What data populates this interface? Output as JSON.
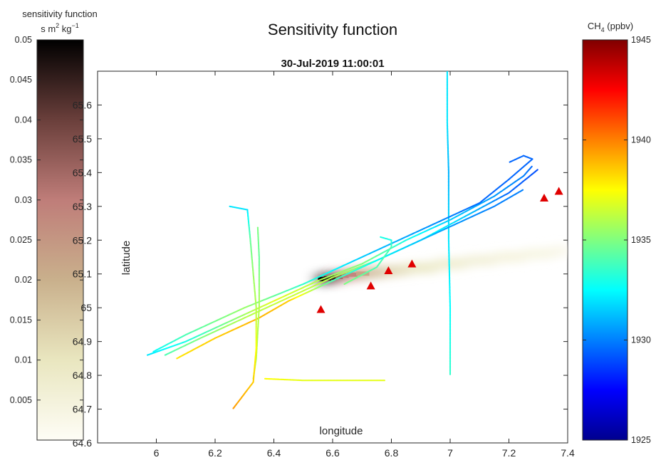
{
  "chart_data": {
    "type": "scatter",
    "title": "Sensitivity function",
    "subtitle": "30-Jul-2019 11:00:01",
    "xlabel": "longitude",
    "ylabel": "latitude",
    "xlim": [
      5.8,
      7.4
    ],
    "ylim": [
      64.6,
      65.7
    ],
    "xticks": [
      "6",
      "6.2",
      "6.4",
      "6.6",
      "6.8",
      "7",
      "7.2",
      "7.4"
    ],
    "yticks": [
      "64.6",
      "64.7",
      "64.8",
      "64.9",
      "65",
      "65.1",
      "65.2",
      "65.3",
      "65.4",
      "65.5",
      "65.6"
    ],
    "grid": false,
    "colorbar_left": {
      "title_line1": "sensitivity function",
      "title_line2_parts": [
        "s m",
        "2",
        " kg",
        "−1"
      ],
      "range": [
        0.0,
        0.05
      ],
      "ticks": [
        "0.05",
        "0.045",
        "0.04",
        "0.035",
        "0.03",
        "0.025",
        "0.02",
        "0.015",
        "0.01",
        "0.005"
      ],
      "colormap": [
        "#fefdf6",
        "#e9e6bf",
        "#c9b08c",
        "#bf7d79",
        "#6a3f3b",
        "#000000"
      ]
    },
    "colorbar_right": {
      "title_parts": [
        "CH",
        "4",
        " (ppbv)"
      ],
      "range": [
        1925,
        1945
      ],
      "ticks": [
        "1945",
        "1940",
        "1935",
        "1930",
        "1925"
      ],
      "colormap": [
        "#00008f",
        "#0000ff",
        "#0080ff",
        "#00ffff",
        "#80ff80",
        "#ffff00",
        "#ff8000",
        "#ff0000",
        "#800000"
      ]
    },
    "markers": {
      "shape": "triangle",
      "color": "#e00000",
      "points": [
        [
          6.56,
          64.995
        ],
        [
          6.73,
          65.065
        ],
        [
          6.79,
          65.11
        ],
        [
          6.87,
          65.13
        ],
        [
          7.32,
          65.325
        ],
        [
          7.37,
          65.345
        ]
      ]
    },
    "sensitivity_plume": [
      [
        6.55,
        65.085,
        0.05
      ],
      [
        6.57,
        65.087,
        0.047
      ],
      [
        6.59,
        65.089,
        0.045
      ],
      [
        6.61,
        65.092,
        0.035
      ],
      [
        6.63,
        65.095,
        0.03
      ],
      [
        6.65,
        65.098,
        0.028
      ],
      [
        6.68,
        65.101,
        0.022
      ],
      [
        6.72,
        65.105,
        0.018
      ],
      [
        6.78,
        65.11,
        0.013
      ],
      [
        6.85,
        65.118,
        0.01
      ],
      [
        6.95,
        65.13,
        0.008
      ],
      [
        7.05,
        65.14,
        0.006
      ],
      [
        7.15,
        65.15,
        0.005
      ],
      [
        7.25,
        65.16,
        0.004
      ],
      [
        7.35,
        65.17,
        0.003
      ]
    ],
    "flight_tracks": [
      {
        "points": [
          [
            6.99,
            65.7,
            1932
          ],
          [
            6.99,
            65.55,
            1932
          ],
          [
            6.995,
            65.4,
            1931
          ],
          [
            6.995,
            65.2,
            1932
          ],
          [
            7.0,
            65.0,
            1932.5
          ],
          [
            7.0,
            64.8,
            1933.5
          ]
        ]
      },
      {
        "points": [
          [
            6.03,
            64.86,
            1934
          ],
          [
            6.15,
            64.91,
            1935
          ],
          [
            6.3,
            64.97,
            1936
          ],
          [
            6.45,
            65.03,
            1936.5
          ],
          [
            6.6,
            65.09,
            1936
          ],
          [
            6.75,
            65.14,
            1934.5
          ],
          [
            6.9,
            65.2,
            1933
          ],
          [
            7.05,
            65.27,
            1931.5
          ],
          [
            7.2,
            65.34,
            1929.5
          ],
          [
            7.3,
            65.41,
            1929
          ]
        ]
      },
      {
        "points": [
          [
            5.97,
            64.86,
            1932
          ],
          [
            6.1,
            64.9,
            1933
          ],
          [
            6.25,
            64.96,
            1935
          ],
          [
            6.4,
            65.02,
            1937
          ],
          [
            6.55,
            65.08,
            1936
          ],
          [
            6.7,
            65.13,
            1935
          ],
          [
            6.85,
            65.2,
            1933
          ],
          [
            7.0,
            65.26,
            1931.5
          ],
          [
            7.15,
            65.33,
            1930.5
          ],
          [
            7.25,
            65.39,
            1930
          ],
          [
            7.28,
            65.42,
            1929.5
          ]
        ]
      },
      {
        "points": [
          [
            6.07,
            64.85,
            1938
          ],
          [
            6.2,
            64.91,
            1938.5
          ],
          [
            6.35,
            64.97,
            1939
          ],
          [
            6.45,
            65.02,
            1938.5
          ],
          [
            6.6,
            65.08,
            1934
          ],
          [
            6.8,
            65.16,
            1932
          ],
          [
            7.0,
            65.24,
            1930.5
          ],
          [
            7.15,
            65.3,
            1930
          ],
          [
            7.25,
            65.35,
            1930
          ]
        ]
      },
      {
        "points": [
          [
            5.99,
            64.87,
            1932.5
          ],
          [
            6.1,
            64.92,
            1934
          ],
          [
            6.3,
            65.0,
            1935.5
          ],
          [
            6.5,
            65.07,
            1933.5
          ],
          [
            6.7,
            65.15,
            1931.5
          ],
          [
            6.9,
            65.23,
            1930.5
          ],
          [
            7.1,
            65.31,
            1929.5
          ],
          [
            7.2,
            65.38,
            1929.5
          ],
          [
            7.28,
            65.44,
            1929.5
          ],
          [
            7.25,
            65.45,
            1929.5
          ],
          [
            7.2,
            65.43,
            1929.5
          ]
        ]
      },
      {
        "points": [
          [
            6.33,
            64.79,
            1936
          ],
          [
            6.34,
            64.85,
            1936
          ],
          [
            6.35,
            65.0,
            1936
          ],
          [
            6.35,
            65.15,
            1934.5
          ],
          [
            6.345,
            65.24,
            1935
          ]
        ]
      },
      {
        "points": [
          [
            6.25,
            65.3,
            1932
          ],
          [
            6.31,
            65.29,
            1932
          ],
          [
            6.32,
            65.2,
            1934.5
          ],
          [
            6.33,
            65.1,
            1935.5
          ],
          [
            6.34,
            65.0,
            1936
          ],
          [
            6.34,
            64.88,
            1937.5
          ],
          [
            6.33,
            64.78,
            1938.5
          ],
          [
            6.26,
            64.7,
            1939.5
          ]
        ]
      },
      {
        "points": [
          [
            6.37,
            64.79,
            1937.5
          ],
          [
            6.5,
            64.785,
            1937
          ],
          [
            6.65,
            64.785,
            1937
          ],
          [
            6.78,
            64.785,
            1937
          ]
        ]
      },
      {
        "points": [
          [
            6.64,
            65.07,
            1935
          ],
          [
            6.75,
            65.12,
            1934
          ],
          [
            6.8,
            65.18,
            1934
          ],
          [
            6.8,
            65.2,
            1933
          ],
          [
            6.76,
            65.21,
            1933
          ]
        ]
      }
    ]
  }
}
